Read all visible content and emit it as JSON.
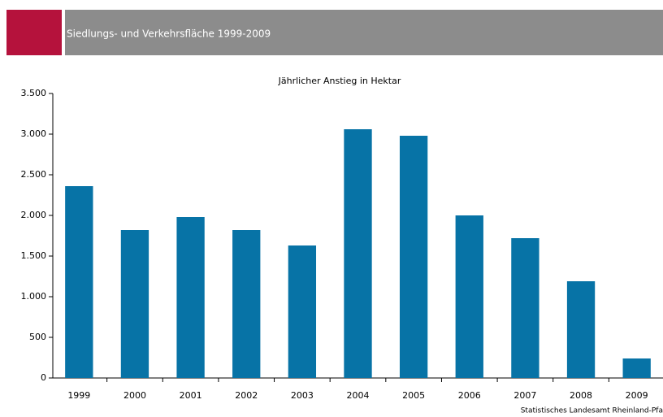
{
  "header": {
    "title": "Siedlungs- und Verkehrsfläche 1999-2009"
  },
  "chart_data": {
    "type": "bar",
    "title": "Jährlicher Anstieg in Hektar",
    "categories": [
      "1999",
      "2000",
      "2001",
      "2002",
      "2003",
      "2004",
      "2005",
      "2006",
      "2007",
      "2008",
      "2009"
    ],
    "values": [
      2360,
      1820,
      1980,
      1820,
      1630,
      3060,
      2980,
      2000,
      1720,
      1190,
      240
    ],
    "color": "#0773a6",
    "ylim": [
      0,
      3500
    ],
    "yticks": [
      0,
      500,
      {
        "value": 1000,
        "label": "1.000"
      },
      {
        "value": 1500,
        "label": "1.500"
      },
      {
        "value": 2000,
        "label": "2.000"
      },
      {
        "value": 2500,
        "label": "2.500"
      },
      {
        "value": 3000,
        "label": "3.000"
      },
      {
        "value": 3500,
        "label": "3.500"
      }
    ],
    "grid": false,
    "source": "Statistisches Landesamt Rheinland-Pfa"
  }
}
